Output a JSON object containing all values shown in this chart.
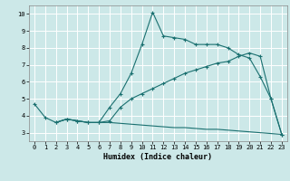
{
  "xlabel": "Humidex (Indice chaleur)",
  "bg_color": "#cce8e8",
  "grid_color": "#ffffff",
  "line_color": "#1a7070",
  "line1_x": [
    0,
    1,
    2,
    3,
    4,
    5,
    6,
    7,
    8,
    9,
    10,
    11,
    12,
    13,
    14,
    15,
    16,
    17,
    18,
    19,
    20,
    21,
    22,
    23
  ],
  "line1_y": [
    4.7,
    3.9,
    3.6,
    3.8,
    3.7,
    3.6,
    3.6,
    4.5,
    5.3,
    6.5,
    8.2,
    10.1,
    8.7,
    8.6,
    8.5,
    8.2,
    8.2,
    8.2,
    8.0,
    7.6,
    7.4,
    6.3,
    5.0,
    2.9
  ],
  "line2_x": [
    2,
    3,
    4,
    5,
    6,
    7,
    8,
    9,
    10,
    11,
    12,
    13,
    14,
    15,
    16,
    17,
    18,
    19,
    20,
    21,
    22,
    23
  ],
  "line2_y": [
    3.6,
    3.8,
    3.7,
    3.6,
    3.6,
    3.7,
    4.5,
    5.0,
    5.3,
    5.6,
    5.9,
    6.2,
    6.5,
    6.7,
    6.9,
    7.1,
    7.2,
    7.5,
    7.7,
    7.5,
    5.0,
    2.9
  ],
  "line3_x": [
    2,
    3,
    4,
    5,
    6,
    7,
    8,
    9,
    10,
    11,
    12,
    13,
    14,
    15,
    16,
    17,
    18,
    19,
    20,
    21,
    22,
    23
  ],
  "line3_y": [
    3.6,
    3.8,
    3.7,
    3.6,
    3.6,
    3.6,
    3.55,
    3.5,
    3.45,
    3.4,
    3.35,
    3.3,
    3.3,
    3.25,
    3.2,
    3.2,
    3.15,
    3.1,
    3.05,
    3.0,
    2.95,
    2.9
  ],
  "xlim": [
    -0.5,
    23.5
  ],
  "ylim": [
    2.5,
    10.5
  ],
  "yticks": [
    3,
    4,
    5,
    6,
    7,
    8,
    9,
    10
  ],
  "xticks": [
    0,
    1,
    2,
    3,
    4,
    5,
    6,
    7,
    8,
    9,
    10,
    11,
    12,
    13,
    14,
    15,
    16,
    17,
    18,
    19,
    20,
    21,
    22,
    23
  ],
  "marker": "+",
  "markersize": 3,
  "linewidth": 0.8,
  "tick_fontsize": 5,
  "xlabel_fontsize": 6,
  "ytick_fontsize": 5
}
